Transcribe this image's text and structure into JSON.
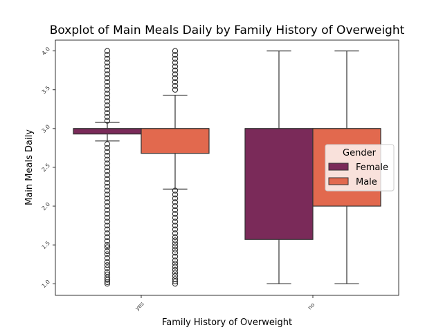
{
  "chart_data": {
    "type": "boxplot",
    "title": "Boxplot of Main Meals Daily by Family History of Overweight",
    "xlabel": "Family History of Overweight",
    "ylabel": "Main Meals Daily",
    "categories": [
      "yes",
      "no"
    ],
    "ylim": [
      0.85,
      4.14
    ],
    "yticks": [
      {
        "value": 1.0,
        "label": "1.0"
      },
      {
        "value": 1.5,
        "label": "1.5"
      },
      {
        "value": 2.0,
        "label": "2.0"
      },
      {
        "value": 2.5,
        "label": "2.5"
      },
      {
        "value": 3.0,
        "label": "3.0"
      },
      {
        "value": 3.5,
        "label": "3.5"
      },
      {
        "value": 4.0,
        "label": "4.0"
      }
    ],
    "legend": {
      "title": "Gender",
      "placement": "center-right"
    },
    "series": [
      {
        "name": "Female",
        "color": "#7a2a59",
        "boxes": [
          {
            "category": "yes",
            "q1": 2.93,
            "median": 3.0,
            "q3": 3.0,
            "whisker_low": 2.84,
            "whisker_high": 3.08,
            "outliers": [
              1.0,
              1.02,
              1.05,
              1.08,
              1.12,
              1.15,
              1.2,
              1.24,
              1.28,
              1.33,
              1.38,
              1.42,
              1.47,
              1.5,
              1.55,
              1.6,
              1.65,
              1.7,
              1.75,
              1.8,
              1.85,
              1.9,
              1.95,
              2.0,
              2.05,
              2.1,
              2.15,
              2.2,
              2.25,
              2.3,
              2.35,
              2.4,
              2.45,
              2.5,
              2.55,
              2.6,
              2.65,
              2.7,
              2.75,
              2.8,
              3.1,
              3.15,
              3.2,
              3.25,
              3.3,
              3.35,
              3.4,
              3.45,
              3.5,
              3.55,
              3.6,
              3.65,
              3.7,
              3.75,
              3.8,
              3.85,
              3.9,
              3.95,
              4.0
            ]
          }
        ]
      },
      {
        "name": "Male",
        "color": "#e2694e",
        "boxes": [
          {
            "category": "yes",
            "q1": 2.68,
            "median": 3.0,
            "q3": 3.0,
            "whisker_low": 2.22,
            "whisker_high": 3.43,
            "outliers": [
              1.0,
              1.03,
              1.06,
              1.1,
              1.14,
              1.18,
              1.22,
              1.26,
              1.3,
              1.35,
              1.4,
              1.44,
              1.48,
              1.52,
              1.56,
              1.6,
              1.65,
              1.7,
              1.75,
              1.8,
              1.85,
              1.9,
              1.95,
              2.0,
              2.05,
              2.1,
              2.15,
              2.2,
              3.5,
              3.55,
              3.6,
              3.65,
              3.7,
              3.75,
              3.8,
              3.85,
              3.9,
              3.95,
              4.0
            ]
          }
        ]
      },
      {
        "name": "Female",
        "color": "#7a2a59",
        "boxes": [
          {
            "category": "no",
            "q1": 1.57,
            "median": 3.0,
            "q3": 3.0,
            "whisker_low": 1.0,
            "whisker_high": 4.0,
            "outliers": []
          }
        ]
      },
      {
        "name": "Male",
        "color": "#e2694e",
        "boxes": [
          {
            "category": "no",
            "q1": 2.0,
            "median": 3.0,
            "q3": 3.0,
            "whisker_low": 1.0,
            "whisker_high": 4.0,
            "outliers": []
          }
        ]
      }
    ],
    "legend_entries": [
      {
        "name": "Female",
        "color": "#7a2a59"
      },
      {
        "name": "Male",
        "color": "#e2694e"
      }
    ]
  }
}
